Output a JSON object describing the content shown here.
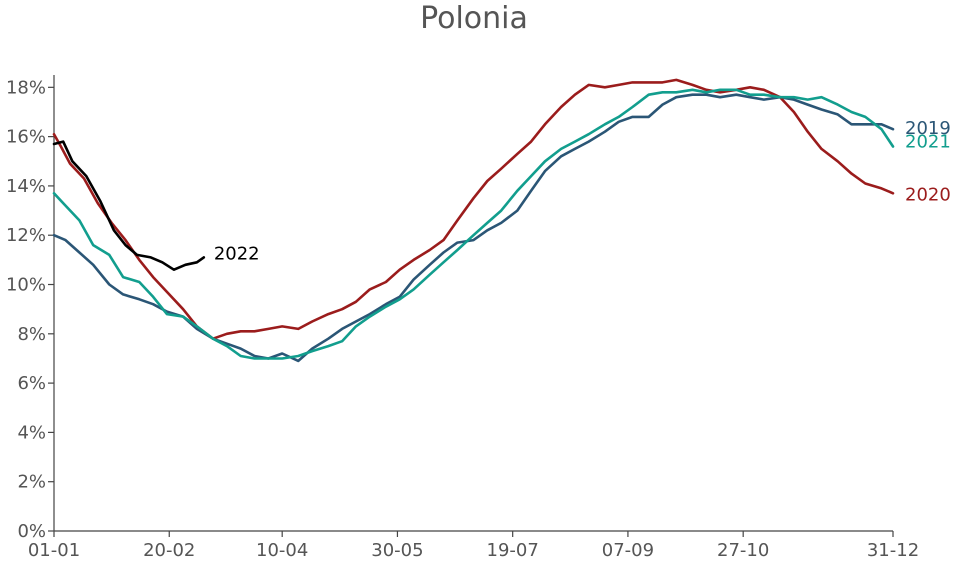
{
  "chart_data": {
    "type": "line",
    "title": "Polonia",
    "xlabel": "",
    "ylabel": "",
    "x_unit": "day of year",
    "xlim": [
      1,
      365
    ],
    "ylim": [
      0,
      18.5
    ],
    "grid": false,
    "legend": "inline labels at line ends",
    "x_ticks": [
      {
        "x": 1,
        "label": "01-01"
      },
      {
        "x": 51,
        "label": "20-02"
      },
      {
        "x": 100,
        "label": "10-04"
      },
      {
        "x": 150,
        "label": "30-05"
      },
      {
        "x": 200,
        "label": "19-07"
      },
      {
        "x": 250,
        "label": "07-09"
      },
      {
        "x": 300,
        "label": "27-10"
      },
      {
        "x": 365,
        "label": "31-12"
      }
    ],
    "y_ticks": [
      {
        "y": 0,
        "label": "0%"
      },
      {
        "y": 2,
        "label": "2%"
      },
      {
        "y": 4,
        "label": "4%"
      },
      {
        "y": 6,
        "label": "6%"
      },
      {
        "y": 8,
        "label": "8%"
      },
      {
        "y": 10,
        "label": "10%"
      },
      {
        "y": 12,
        "label": "12%"
      },
      {
        "y": 14,
        "label": "14%"
      },
      {
        "y": 16,
        "label": "16%"
      },
      {
        "y": 18,
        "label": "18%"
      }
    ],
    "series": [
      {
        "name": "2019",
        "color": "#2b5676",
        "x": [
          1,
          6,
          12,
          18,
          25,
          31,
          38,
          44,
          50,
          57,
          63,
          70,
          76,
          82,
          88,
          94,
          100,
          107,
          113,
          120,
          126,
          132,
          138,
          145,
          151,
          157,
          164,
          170,
          176,
          183,
          189,
          195,
          202,
          208,
          214,
          221,
          227,
          233,
          240,
          246,
          252,
          259,
          265,
          271,
          278,
          284,
          290,
          297,
          303,
          309,
          316,
          322,
          328,
          334,
          341,
          347,
          353,
          360,
          365
        ],
        "y": [
          12.0,
          11.8,
          11.3,
          10.8,
          10.0,
          9.6,
          9.4,
          9.2,
          8.9,
          8.7,
          8.2,
          7.8,
          7.6,
          7.4,
          7.1,
          7.0,
          7.2,
          6.9,
          7.4,
          7.8,
          8.2,
          8.5,
          8.8,
          9.2,
          9.5,
          10.2,
          10.8,
          11.3,
          11.7,
          11.8,
          12.2,
          12.5,
          13.0,
          13.8,
          14.6,
          15.2,
          15.5,
          15.8,
          16.2,
          16.6,
          16.8,
          16.8,
          17.3,
          17.6,
          17.7,
          17.7,
          17.6,
          17.7,
          17.6,
          17.5,
          17.6,
          17.5,
          17.3,
          17.1,
          16.9,
          16.5,
          16.5,
          16.5,
          16.3
        ]
      },
      {
        "name": "2020",
        "color": "#9b1c1c",
        "x": [
          1,
          4,
          8,
          14,
          20,
          26,
          32,
          38,
          44,
          50,
          57,
          63,
          70,
          76,
          82,
          88,
          94,
          100,
          107,
          113,
          120,
          126,
          132,
          138,
          145,
          151,
          157,
          164,
          170,
          176,
          183,
          189,
          195,
          202,
          208,
          214,
          221,
          227,
          233,
          240,
          246,
          252,
          259,
          265,
          271,
          278,
          284,
          290,
          297,
          303,
          309,
          316,
          322,
          328,
          334,
          341,
          347,
          353,
          360,
          365
        ],
        "y": [
          16.1,
          15.6,
          14.9,
          14.3,
          13.3,
          12.5,
          11.8,
          11.0,
          10.3,
          9.7,
          9.0,
          8.3,
          7.8,
          8.0,
          8.1,
          8.1,
          8.2,
          8.3,
          8.2,
          8.5,
          8.8,
          9.0,
          9.3,
          9.8,
          10.1,
          10.6,
          11.0,
          11.4,
          11.8,
          12.6,
          13.5,
          14.2,
          14.7,
          15.3,
          15.8,
          16.5,
          17.2,
          17.7,
          18.1,
          18.0,
          18.1,
          18.2,
          18.2,
          18.2,
          18.3,
          18.1,
          17.9,
          17.8,
          17.9,
          18.0,
          17.9,
          17.6,
          17.0,
          16.2,
          15.5,
          15.0,
          14.5,
          14.1,
          13.9,
          13.7
        ]
      },
      {
        "name": "2021",
        "color": "#129e8e",
        "x": [
          1,
          6,
          12,
          18,
          25,
          31,
          38,
          44,
          50,
          57,
          63,
          70,
          76,
          82,
          88,
          94,
          100,
          107,
          113,
          120,
          126,
          132,
          138,
          145,
          151,
          157,
          164,
          170,
          176,
          183,
          189,
          195,
          202,
          208,
          214,
          221,
          227,
          233,
          240,
          246,
          252,
          259,
          265,
          271,
          278,
          284,
          290,
          297,
          303,
          309,
          316,
          322,
          328,
          334,
          341,
          347,
          353,
          360,
          365
        ],
        "y": [
          13.7,
          13.2,
          12.6,
          11.6,
          11.2,
          10.3,
          10.1,
          9.5,
          8.8,
          8.7,
          8.3,
          7.8,
          7.5,
          7.1,
          7.0,
          7.0,
          7.0,
          7.1,
          7.3,
          7.5,
          7.7,
          8.3,
          8.7,
          9.1,
          9.4,
          9.8,
          10.4,
          10.9,
          11.4,
          12.0,
          12.5,
          13.0,
          13.8,
          14.4,
          15.0,
          15.5,
          15.8,
          16.1,
          16.5,
          16.8,
          17.2,
          17.7,
          17.8,
          17.8,
          17.9,
          17.8,
          17.9,
          17.9,
          17.7,
          17.7,
          17.6,
          17.6,
          17.5,
          17.6,
          17.3,
          17.0,
          16.8,
          16.3,
          15.6
        ]
      },
      {
        "name": "2022",
        "color": "#000000",
        "x": [
          1,
          5,
          9,
          15,
          21,
          27,
          32,
          37,
          43,
          48,
          53,
          58,
          63,
          66
        ],
        "y": [
          15.7,
          15.8,
          15.0,
          14.4,
          13.4,
          12.2,
          11.6,
          11.2,
          11.1,
          10.9,
          10.6,
          10.8,
          10.9,
          11.1
        ]
      }
    ]
  }
}
